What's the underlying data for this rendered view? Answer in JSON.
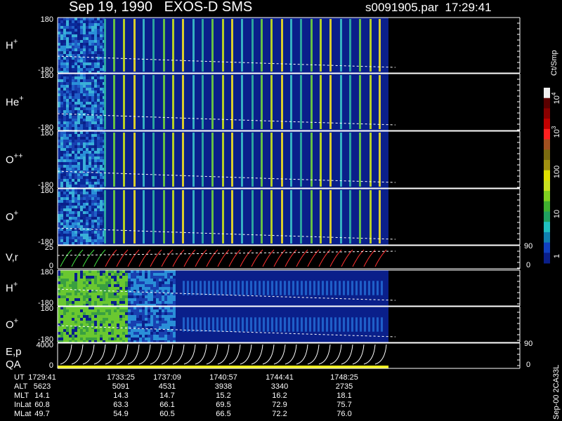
{
  "header": {
    "title": "Sep 19, 1990   EXOS-D SMS",
    "file": "s0091905.par  17:29:41"
  },
  "panels": [
    {
      "label": {
        "base": "H",
        "sup": "+"
      },
      "left_ticks": [
        "180",
        "-180"
      ]
    },
    {
      "label": {
        "base": "He",
        "sup": "+"
      },
      "left_ticks": [
        "180",
        "-180"
      ]
    },
    {
      "label": {
        "base": "O",
        "sup": "++"
      },
      "left_ticks": [
        "180",
        "-180"
      ]
    },
    {
      "label": {
        "base": "O",
        "sup": "+"
      },
      "left_ticks": [
        "180",
        "-180"
      ]
    },
    {
      "label": {
        "base": "V,r"
      },
      "left_ticks": [
        "25",
        "0"
      ],
      "right_ticks": [
        "90",
        "0"
      ]
    },
    {
      "label": {
        "base": "H",
        "sup": "+"
      },
      "left_ticks": [
        "180",
        "-180"
      ]
    },
    {
      "label": {
        "base": "O",
        "sup": "+"
      },
      "left_ticks": [
        "180",
        "-180"
      ]
    },
    {
      "label": {
        "base": "E,p",
        "line2": "QA"
      },
      "left_ticks": [
        "4000",
        "0"
      ],
      "right_ticks": [
        "90",
        "0"
      ]
    }
  ],
  "colorbar": {
    "unit": "Ct/Smp",
    "labels": [
      {
        "base": "10",
        "sup": "4"
      },
      {
        "base": "10",
        "sup": "3"
      },
      {
        "base": "100"
      },
      {
        "base": "10"
      },
      {
        "base": "1"
      }
    ]
  },
  "footer": {
    "rows": [
      {
        "label": "UT",
        "values": [
          "1729:41",
          "1733:25",
          "1737:09",
          "1740:57",
          "1744:41",
          "1748:25"
        ]
      },
      {
        "label": "ALT",
        "values": [
          "5623",
          "5091",
          "4531",
          "3938",
          "3340",
          "2735"
        ]
      },
      {
        "label": "MLT",
        "values": [
          "14.1",
          "14.3",
          "14.7",
          "15.2",
          "16.2",
          "18.1"
        ]
      },
      {
        "label": "InLat",
        "values": [
          "60.8",
          "63.3",
          "66.1",
          "69.5",
          "72.9",
          "75.7"
        ]
      },
      {
        "label": "MLat",
        "values": [
          "49.7",
          "54.9",
          "60.5",
          "66.5",
          "72.2",
          "76.0"
        ]
      }
    ]
  },
  "side_note": "Sep-00 2CA33L"
}
